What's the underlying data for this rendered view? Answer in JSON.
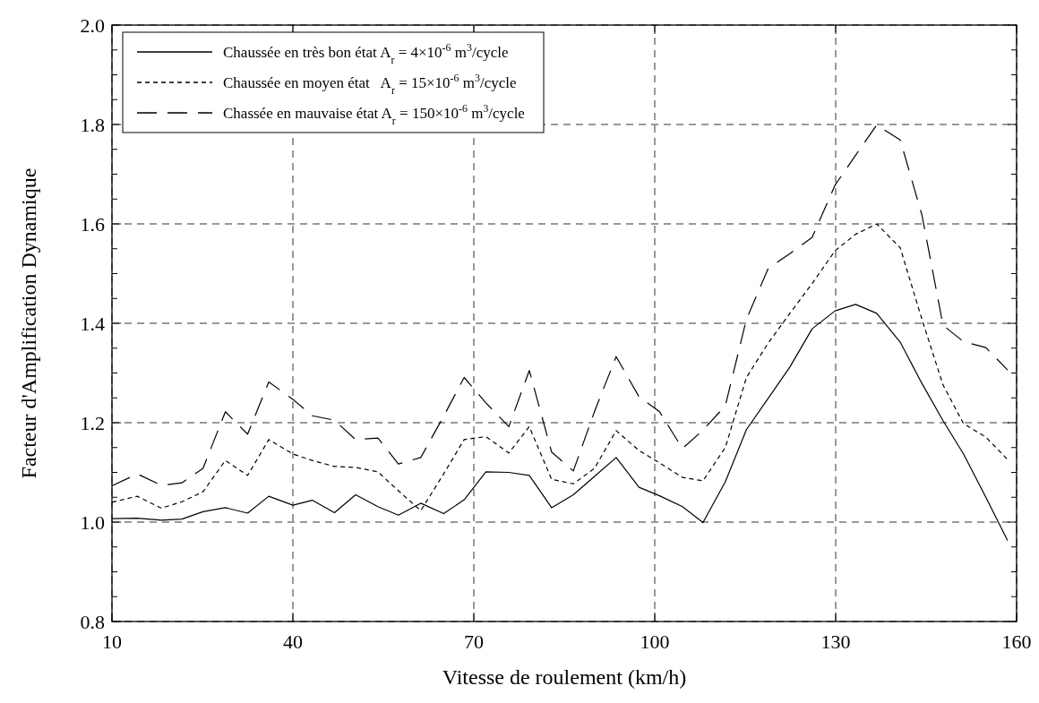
{
  "chart_data": {
    "type": "line",
    "xlabel": "Vitesse de roulement (km/h)",
    "ylabel": "Facteur d'Amplification Dynamique",
    "x": [
      10,
      14.2,
      18.2,
      21.6,
      25.1,
      28.8,
      32.5,
      36,
      40,
      43.2,
      46.9,
      50.4,
      54.1,
      57.5,
      61.2,
      65,
      68.4,
      72,
      75.8,
      79.2,
      82.9,
      86.5,
      90,
      93.6,
      97.4,
      100.8,
      104.6,
      108,
      111.7,
      115.2,
      118.8,
      122.4,
      126.1,
      129.9,
      133.3,
      136.8,
      140.7,
      144.3,
      147.8,
      151.2,
      154.9,
      158.5
    ],
    "series": [
      {
        "name": "Chaussée en très bon état A$_{r}$ = 4×10$^{-6}$ m$^{3}$/cycle",
        "color": "#000000",
        "line_style": "solid",
        "values": [
          1.007,
          1.008,
          1.004,
          1.006,
          1.021,
          1.029,
          1.018,
          1.052,
          1.034,
          1.044,
          1.019,
          1.055,
          1.031,
          1.014,
          1.038,
          1.017,
          1.045,
          1.101,
          1.1,
          1.094,
          1.029,
          1.055,
          1.092,
          1.13,
          1.07,
          1.053,
          1.031,
          0.999,
          1.081,
          1.186,
          1.249,
          1.312,
          1.389,
          1.425,
          1.438,
          1.42,
          1.362,
          1.279,
          1.204,
          1.137,
          1.05,
          0.963
        ]
      },
      {
        "name": "Chaussée en moyen état   A$_{r}$ = 15×10$^{-6}$ m$^{3}$/cycle",
        "color": "#000000",
        "line_style": "dotted",
        "values": [
          1.04,
          1.052,
          1.028,
          1.041,
          1.061,
          1.124,
          1.094,
          1.166,
          1.137,
          1.124,
          1.112,
          1.11,
          1.101,
          1.063,
          1.023,
          1.097,
          1.166,
          1.172,
          1.139,
          1.192,
          1.086,
          1.077,
          1.108,
          1.184,
          1.144,
          1.119,
          1.09,
          1.083,
          1.15,
          1.291,
          1.36,
          1.42,
          1.48,
          1.546,
          1.579,
          1.6,
          1.552,
          1.408,
          1.276,
          1.198,
          1.171,
          1.126
        ]
      },
      {
        "name": "Chassée en mauvaise état A$_{r}$ = 150×10$^{-6}$ m$^{3}$/cycle",
        "color": "#000000",
        "line_style": "dashed",
        "values": [
          1.073,
          1.097,
          1.074,
          1.079,
          1.108,
          1.222,
          1.177,
          1.282,
          1.247,
          1.214,
          1.205,
          1.166,
          1.169,
          1.117,
          1.13,
          1.213,
          1.291,
          1.24,
          1.192,
          1.305,
          1.141,
          1.103,
          1.222,
          1.333,
          1.252,
          1.222,
          1.148,
          1.185,
          1.234,
          1.408,
          1.51,
          1.54,
          1.573,
          1.678,
          1.738,
          1.799,
          1.769,
          1.618,
          1.396,
          1.363,
          1.351,
          1.306
        ]
      }
    ],
    "xlim": [
      10,
      160
    ],
    "xticks": [
      10,
      40,
      70,
      100,
      130,
      160
    ],
    "ylim": [
      0.8,
      2.0
    ],
    "yticks": [
      0.8,
      {
        "value": 0.85,
        "label": null
      },
      {
        "value": 0.9,
        "label": null
      },
      {
        "value": 0.95,
        "label": null
      },
      {
        "value": 1,
        "label": "1.0"
      },
      {
        "value": 1.05,
        "label": null
      },
      {
        "value": 1.1,
        "label": null
      },
      {
        "value": 1.15,
        "label": null
      },
      1.2,
      {
        "value": 1.25,
        "label": null
      },
      {
        "value": 1.3,
        "label": null
      },
      {
        "value": 1.35,
        "label": null
      },
      1.4,
      {
        "value": 1.45,
        "label": null
      },
      {
        "value": 1.5,
        "label": null
      },
      {
        "value": 1.55,
        "label": null
      },
      1.6,
      {
        "value": 1.65,
        "label": null
      },
      {
        "value": 1.7,
        "label": null
      },
      {
        "value": 1.75,
        "label": null
      },
      1.8,
      {
        "value": 1.85,
        "label": null
      },
      {
        "value": 1.9,
        "label": null
      },
      {
        "value": 1.95,
        "label": null
      },
      {
        "value": 2,
        "label": "2.0"
      }
    ],
    "grid": true,
    "legend": "top left"
  }
}
